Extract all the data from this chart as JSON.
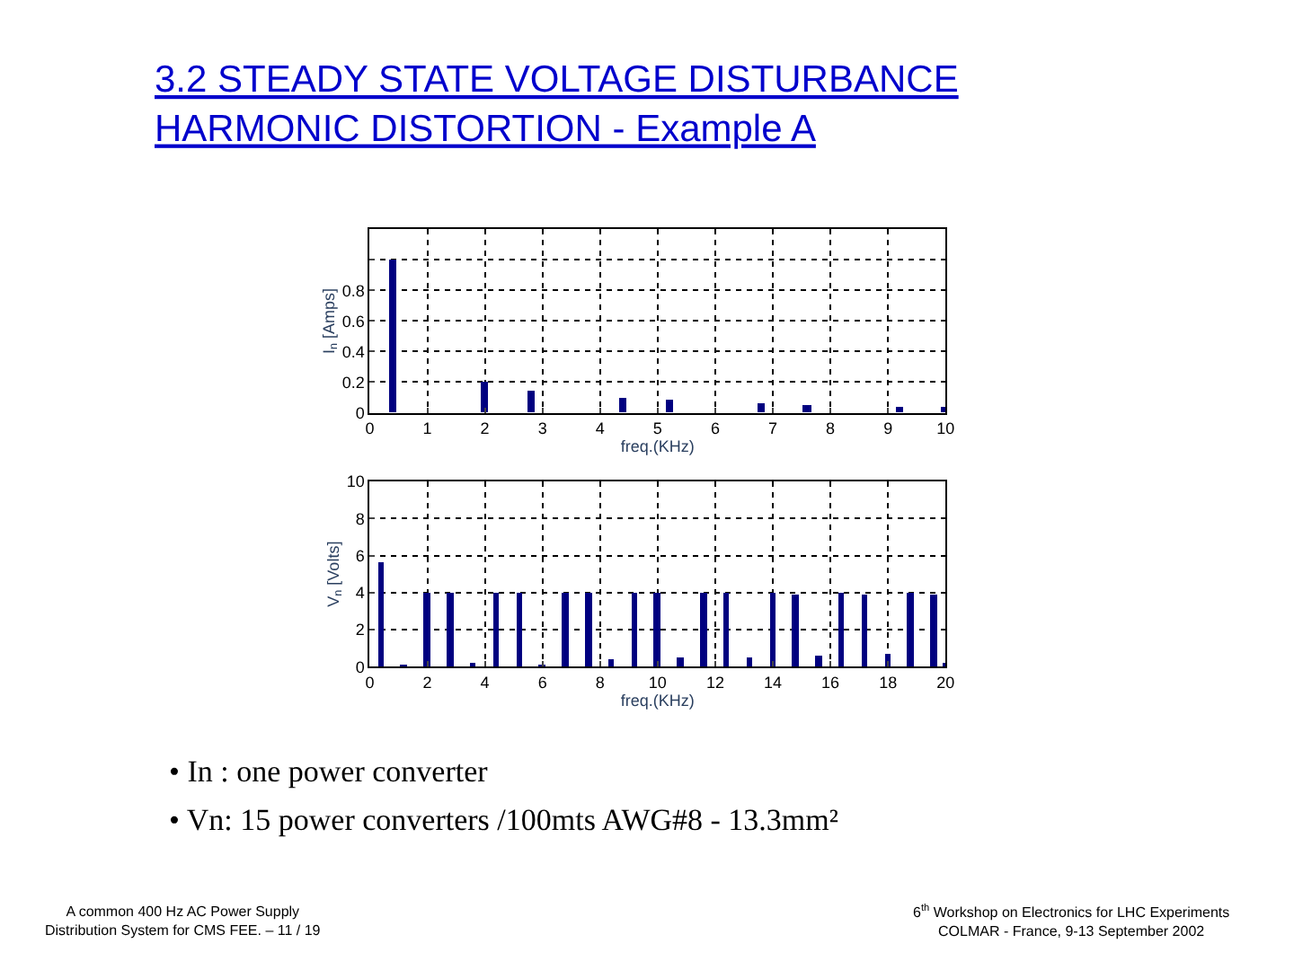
{
  "chart_data": [
    {
      "type": "bar",
      "title": "3.2 STEADY STATE VOLTAGE DISTURBANCE\nHARMONIC DISTORTION - Example A",
      "xlabel": "freq.(KHz)",
      "ylabel": "I$_{n}$ [Amps]",
      "x": [
        0.4,
        2.0,
        2.8,
        4.4,
        5.2,
        6.8,
        7.6,
        9.2,
        10.0
      ],
      "series": [
        {
          "color": "#000080",
          "values": [
            1.0,
            0.2,
            0.14,
            0.1,
            0.08,
            0.06,
            0.05,
            0.04,
            0.04
          ]
        }
      ],
      "xlim": [
        0,
        10
      ],
      "xticks": [
        0,
        1,
        2,
        3,
        4,
        5,
        6,
        7,
        8,
        9,
        10
      ],
      "ylim": [
        0,
        1.2
      ],
      "yticks": [
        0,
        0.2,
        0.4,
        0.6,
        0.8,
        {
          "value": 1.0,
          "label": null
        }
      ],
      "grid": true
    },
    {
      "type": "bar",
      "xlabel": "freq.(KHz)",
      "ylabel": "V$_{n}$ [Volts]",
      "x": [
        0.4,
        1.2,
        2.0,
        2.8,
        3.6,
        4.4,
        5.2,
        6.0,
        6.8,
        7.6,
        8.4,
        9.2,
        10.0,
        10.8,
        11.6,
        12.4,
        13.2,
        14.0,
        14.8,
        15.6,
        16.4,
        17.2,
        18.0,
        18.8,
        19.6,
        20.0
      ],
      "series": [
        {
          "color": "#000080",
          "values": [
            5.6,
            0.1,
            4.0,
            4.0,
            0.2,
            4.0,
            4.0,
            0.1,
            4.0,
            4.0,
            0.4,
            4.0,
            4.0,
            0.5,
            4.0,
            4.0,
            0.5,
            4.0,
            3.9,
            0.6,
            4.0,
            3.9,
            0.7,
            4.0,
            3.9,
            0.2
          ]
        }
      ],
      "xlim": [
        0,
        20
      ],
      "xticks": [
        0,
        2,
        4,
        6,
        8,
        10,
        12,
        14,
        16,
        18,
        20
      ],
      "ylim": [
        0,
        10
      ],
      "yticks": [
        0,
        2,
        4,
        6,
        8,
        10
      ],
      "grid": true,
      "annotations": [
        "• In : one power converter",
        "• Vn: 15 power converters /100mts AWG#8 - 13.3mm²",
        "A common 400 Hz AC Power Supply\nDistribution System for CMS FEE. – 11 / 19",
        "6$^{th}$ Workshop on Electronics for LHC Experiments\nCOLMAR - France, 9-13 September 2002"
      ]
    }
  ]
}
